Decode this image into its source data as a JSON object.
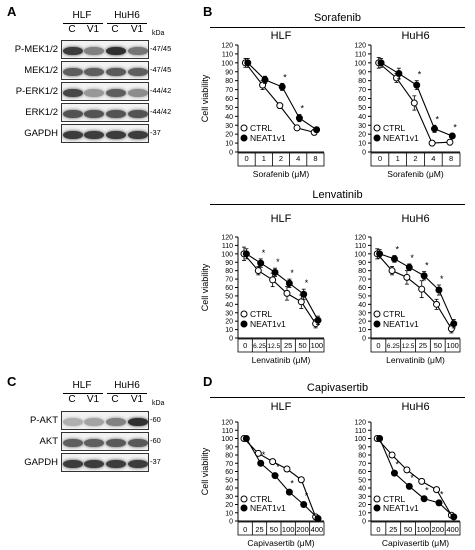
{
  "panels": {
    "a": "A",
    "b": "B",
    "c": "C",
    "d": "D"
  },
  "blot_a": {
    "groups": [
      "HLF",
      "HuH6"
    ],
    "lanes": [
      "C",
      "V1",
      "C",
      "V1"
    ],
    "kda_label": "kDa",
    "rows": [
      {
        "label": "P-MEK1/2",
        "mw": "47/45",
        "intensity": [
          0.85,
          0.55,
          0.9,
          0.6
        ]
      },
      {
        "label": "MEK1/2",
        "mw": "47/45",
        "intensity": [
          0.7,
          0.7,
          0.72,
          0.7
        ]
      },
      {
        "label": "P-ERK1/2",
        "mw": "44/42",
        "intensity": [
          0.8,
          0.45,
          0.7,
          0.5
        ]
      },
      {
        "label": "ERK1/2",
        "mw": "44/42",
        "intensity": [
          0.75,
          0.75,
          0.75,
          0.75
        ]
      },
      {
        "label": "GAPDH",
        "mw": "37",
        "intensity": [
          0.85,
          0.85,
          0.85,
          0.85
        ]
      }
    ]
  },
  "blot_c": {
    "groups": [
      "HLF",
      "HuH6"
    ],
    "lanes": [
      "C",
      "V1",
      "C",
      "V1"
    ],
    "kda_label": "kDa",
    "rows": [
      {
        "label": "P-AKT",
        "mw": "60",
        "intensity": [
          0.35,
          0.4,
          0.55,
          0.9
        ]
      },
      {
        "label": "AKT",
        "mw": "60",
        "intensity": [
          0.7,
          0.7,
          0.72,
          0.72
        ]
      },
      {
        "label": "GAPDH",
        "mw": "37",
        "intensity": [
          0.85,
          0.85,
          0.85,
          0.85
        ]
      }
    ]
  },
  "drug_titles": {
    "sorafenib": "Sorafenib",
    "lenvatinib": "Lenvatinib",
    "capivasertib": "Capivasertib"
  },
  "legend": {
    "ctrl": "CTRL",
    "neat": "NEAT1v1"
  },
  "chart_data": [
    {
      "type": "line",
      "id": "sor-hlf",
      "drug": "sorafenib",
      "title": "HLF",
      "ylabel": "Cell viability",
      "xlabel": "Sorafenib (μM)",
      "categories": [
        "0",
        "1",
        "2",
        "4",
        "8"
      ],
      "ylim": [
        0,
        120
      ],
      "yticks": [
        "0",
        "10",
        "20",
        "30",
        "40",
        "50",
        "60",
        "70",
        "80",
        "90",
        "100",
        "110",
        "120"
      ],
      "series": [
        {
          "name": "CTRL",
          "values": [
            100,
            75,
            52,
            27,
            22
          ],
          "err": [
            5,
            5,
            3,
            3,
            3
          ]
        },
        {
          "name": "NEAT1v1",
          "values": [
            100,
            81,
            73,
            38,
            25
          ],
          "err": [
            5,
            4,
            4,
            4,
            3
          ]
        }
      ],
      "significant": [
        false,
        false,
        true,
        true,
        false
      ],
      "legend": true
    },
    {
      "type": "line",
      "id": "sor-huh6",
      "drug": "sorafenib",
      "title": "HuH6",
      "ylabel": "",
      "xlabel": "Sorafenib (μM)",
      "categories": [
        "0",
        "1",
        "2",
        "4",
        "8"
      ],
      "ylim": [
        0,
        120
      ],
      "yticks": [
        "0",
        "10",
        "20",
        "30",
        "40",
        "50",
        "60",
        "70",
        "80",
        "90",
        "100",
        "110",
        "120"
      ],
      "series": [
        {
          "name": "CTRL",
          "values": [
            100,
            83,
            55,
            10,
            11
          ],
          "err": [
            6,
            5,
            8,
            3,
            3
          ]
        },
        {
          "name": "NEAT1v1",
          "values": [
            100,
            88,
            75,
            26,
            18
          ],
          "err": [
            5,
            6,
            5,
            4,
            3
          ]
        }
      ],
      "significant": [
        false,
        false,
        true,
        true,
        true
      ],
      "legend": true
    },
    {
      "type": "line",
      "id": "len-hlf",
      "drug": "lenvatinib",
      "title": "HLF",
      "ylabel": "Cell viability",
      "xlabel": "Lenvatinib (μM)",
      "categories": [
        "0",
        "6.25",
        "12.5",
        "25",
        "50",
        "100"
      ],
      "ylim": [
        0,
        120
      ],
      "yticks": [
        "0",
        "10",
        "20",
        "30",
        "40",
        "50",
        "60",
        "70",
        "80",
        "90",
        "100",
        "110",
        "120"
      ],
      "series": [
        {
          "name": "CTRL",
          "values": [
            100,
            80,
            69,
            53,
            43,
            17
          ],
          "err": [
            8,
            5,
            8,
            8,
            8,
            5
          ]
        },
        {
          "name": "NEAT1v1",
          "values": [
            100,
            89,
            78,
            65,
            52,
            21
          ],
          "err": [
            6,
            5,
            5,
            5,
            6,
            5
          ]
        }
      ],
      "significant": [
        false,
        true,
        true,
        true,
        true,
        false
      ],
      "legend": true
    },
    {
      "type": "line",
      "id": "len-huh6",
      "drug": "lenvatinib",
      "title": "HuH6",
      "ylabel": "",
      "xlabel": "Lenvatinib (μM)",
      "categories": [
        "0",
        "6.25",
        "12.5",
        "25",
        "50",
        "100"
      ],
      "ylim": [
        0,
        120
      ],
      "yticks": [
        "0",
        "10",
        "20",
        "30",
        "40",
        "50",
        "60",
        "70",
        "80",
        "90",
        "100",
        "110",
        "120"
      ],
      "series": [
        {
          "name": "CTRL",
          "values": [
            100,
            80,
            72,
            58,
            40,
            11
          ],
          "err": [
            6,
            5,
            8,
            10,
            6,
            5
          ]
        },
        {
          "name": "NEAT1v1",
          "values": [
            100,
            94,
            84,
            74,
            57,
            17
          ],
          "err": [
            5,
            4,
            4,
            5,
            6,
            5
          ]
        }
      ],
      "significant": [
        false,
        true,
        true,
        true,
        true,
        false
      ],
      "legend": true
    },
    {
      "type": "line",
      "id": "cap-hlf",
      "drug": "capivasertib",
      "title": "HLF",
      "ylabel": "Cell viability",
      "xlabel": "Capivasertib (μM)",
      "categories": [
        "0",
        "25",
        "50",
        "100",
        "200",
        "400"
      ],
      "ylim": [
        0,
        120
      ],
      "yticks": [
        "0",
        "10",
        "20",
        "30",
        "40",
        "50",
        "60",
        "70",
        "80",
        "90",
        "100",
        "110",
        "120"
      ],
      "series": [
        {
          "name": "CTRL",
          "values": [
            100,
            82,
            72,
            63,
            50,
            5
          ],
          "err": [
            3,
            3,
            3,
            3,
            3,
            2
          ]
        },
        {
          "name": "NEAT1v1",
          "values": [
            100,
            70,
            55,
            35,
            20,
            3
          ],
          "err": [
            3,
            3,
            3,
            3,
            3,
            2
          ]
        }
      ],
      "significant": [
        false,
        true,
        true,
        true,
        true,
        false
      ],
      "legend": true
    },
    {
      "type": "line",
      "id": "cap-huh6",
      "drug": "capivasertib",
      "title": "HuH6",
      "ylabel": "",
      "xlabel": "Capivasertib (μM)",
      "categories": [
        "0",
        "25",
        "50",
        "100",
        "200",
        "400"
      ],
      "ylim": [
        0,
        120
      ],
      "yticks": [
        "0",
        "10",
        "20",
        "30",
        "40",
        "50",
        "60",
        "70",
        "80",
        "90",
        "100",
        "110",
        "120"
      ],
      "series": [
        {
          "name": "CTRL",
          "values": [
            100,
            80,
            62,
            48,
            38,
            7
          ],
          "err": [
            3,
            3,
            3,
            3,
            3,
            2
          ]
        },
        {
          "name": "NEAT1v1",
          "values": [
            100,
            58,
            42,
            27,
            22,
            5
          ],
          "err": [
            3,
            3,
            3,
            3,
            3,
            2
          ]
        }
      ],
      "significant": [
        false,
        true,
        true,
        true,
        true,
        false
      ],
      "legend": true
    }
  ]
}
